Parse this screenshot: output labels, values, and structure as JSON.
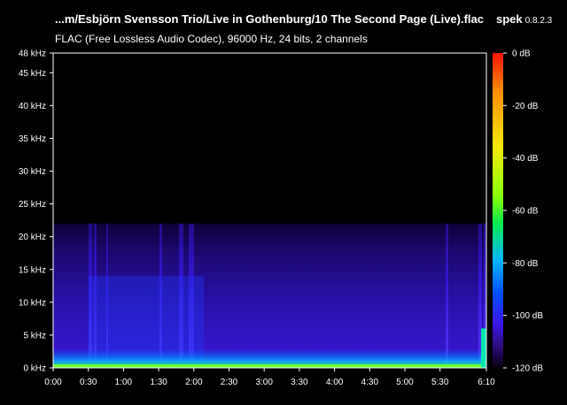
{
  "header": {
    "file_title": "...m/Esbjörn Svensson Trio/Live in Gothenburg/10 The Second Page (Live).flac",
    "app_name": "spek",
    "app_version": "0.8.2.3",
    "subtitle": "FLAC (Free Lossless Audio Codec), 96000 Hz, 24 bits, 2 channels"
  },
  "chart_data": {
    "type": "heatmap",
    "x_ticks": [
      "0:00",
      "0:30",
      "1:00",
      "1:30",
      "2:00",
      "2:30",
      "3:00",
      "3:30",
      "4:00",
      "4:30",
      "5:00",
      "5:30",
      "6:10"
    ],
    "y_ticks": [
      "0 kHz",
      "5 kHz",
      "10 kHz",
      "15 kHz",
      "20 kHz",
      "25 kHz",
      "30 kHz",
      "35 kHz",
      "40 kHz",
      "45 kHz",
      "48 kHz"
    ],
    "x_range_seconds": [
      0,
      370
    ],
    "y_range_khz": [
      0,
      48
    ],
    "colorbar_ticks": [
      "0 dB",
      "-20 dB",
      "-40 dB",
      "-60 dB",
      "-80 dB",
      "-100 dB",
      "-120 dB"
    ],
    "db_range": [
      -120,
      0
    ],
    "content_cutoff_khz": 22,
    "colors": {
      "background": "#000000",
      "gradient": [
        "#ff1200",
        "#ff8c00",
        "#f5e800",
        "#8cff00",
        "#00e85a",
        "#00b4ff",
        "#0050ff",
        "#3a18e8",
        "#2b0a6e",
        "#080010"
      ]
    }
  }
}
